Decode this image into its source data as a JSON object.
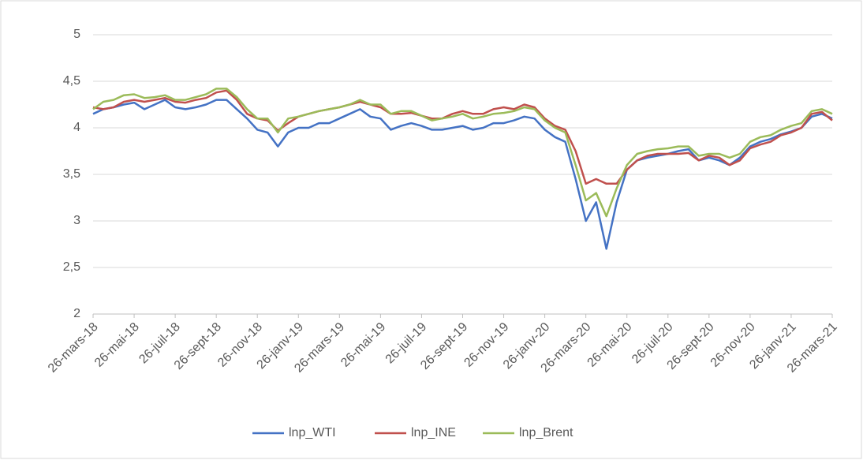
{
  "chart_data": {
    "type": "line",
    "categories": [
      "26-mars-18",
      null,
      null,
      null,
      "26-mai-18",
      null,
      null,
      null,
      "26-juil-18",
      null,
      null,
      null,
      "26-sept-18",
      null,
      null,
      null,
      "26-nov-18",
      null,
      null,
      null,
      "26-janv-19",
      null,
      null,
      null,
      "26-mars-19",
      null,
      null,
      null,
      "26-mai-19",
      null,
      null,
      null,
      "26-juil-19",
      null,
      null,
      null,
      "26-sept-19",
      null,
      null,
      null,
      "26-nov-19",
      null,
      null,
      null,
      "26-janv-20",
      null,
      null,
      null,
      "26-mars-20",
      null,
      null,
      null,
      "26-mai-20",
      null,
      null,
      null,
      "26-juil-20",
      null,
      null,
      null,
      "26-sept-20",
      null,
      null,
      null,
      "26-nov-20",
      null,
      null,
      null,
      "26-janv-21",
      null,
      null,
      null,
      "26-mars-21"
    ],
    "series": [
      {
        "name": "lnp_WTI",
        "color": "#4472c4",
        "values": [
          4.15,
          4.2,
          4.22,
          4.25,
          4.27,
          4.2,
          4.25,
          4.3,
          4.22,
          4.2,
          4.22,
          4.25,
          4.3,
          4.3,
          4.2,
          4.1,
          3.98,
          3.95,
          3.8,
          3.95,
          4.0,
          4.0,
          4.05,
          4.05,
          4.1,
          4.15,
          4.2,
          4.12,
          4.1,
          3.98,
          4.02,
          4.05,
          4.02,
          3.98,
          3.98,
          4.0,
          4.02,
          3.98,
          4.0,
          4.05,
          4.05,
          4.08,
          4.12,
          4.1,
          3.98,
          3.9,
          3.85,
          3.45,
          3.0,
          3.2,
          2.7,
          3.2,
          3.55,
          3.65,
          3.68,
          3.7,
          3.72,
          3.75,
          3.77,
          3.65,
          3.68,
          3.65,
          3.6,
          3.68,
          3.8,
          3.85,
          3.88,
          3.93,
          3.96,
          4.0,
          4.12,
          4.15,
          4.1
        ]
      },
      {
        "name": "lnp_INE",
        "color": "#c0504d",
        "values": [
          4.22,
          4.2,
          4.22,
          4.28,
          4.3,
          4.28,
          4.3,
          4.32,
          4.28,
          4.27,
          4.3,
          4.32,
          4.38,
          4.4,
          4.3,
          4.15,
          4.1,
          4.08,
          3.97,
          4.05,
          4.12,
          4.15,
          4.18,
          4.2,
          4.22,
          4.25,
          4.28,
          4.25,
          4.22,
          4.15,
          4.15,
          4.16,
          4.13,
          4.1,
          4.1,
          4.15,
          4.18,
          4.15,
          4.15,
          4.2,
          4.22,
          4.2,
          4.25,
          4.22,
          4.1,
          4.02,
          3.98,
          3.75,
          3.4,
          3.45,
          3.4,
          3.4,
          3.55,
          3.65,
          3.7,
          3.72,
          3.72,
          3.72,
          3.73,
          3.65,
          3.7,
          3.68,
          3.6,
          3.65,
          3.78,
          3.82,
          3.85,
          3.92,
          3.95,
          4.0,
          4.15,
          4.17,
          4.08
        ]
      },
      {
        "name": "lnp_Brent",
        "color": "#9bbb59",
        "values": [
          4.2,
          4.28,
          4.3,
          4.35,
          4.36,
          4.32,
          4.33,
          4.35,
          4.3,
          4.3,
          4.33,
          4.36,
          4.42,
          4.42,
          4.33,
          4.2,
          4.1,
          4.1,
          3.95,
          4.1,
          4.12,
          4.15,
          4.18,
          4.2,
          4.22,
          4.25,
          4.3,
          4.25,
          4.25,
          4.15,
          4.18,
          4.18,
          4.13,
          4.08,
          4.1,
          4.12,
          4.15,
          4.1,
          4.12,
          4.15,
          4.16,
          4.18,
          4.22,
          4.2,
          4.08,
          4.0,
          3.95,
          3.6,
          3.22,
          3.3,
          3.05,
          3.35,
          3.6,
          3.72,
          3.75,
          3.77,
          3.78,
          3.8,
          3.8,
          3.7,
          3.72,
          3.72,
          3.68,
          3.72,
          3.85,
          3.9,
          3.92,
          3.98,
          4.02,
          4.05,
          4.18,
          4.2,
          4.15
        ]
      }
    ],
    "ylim": [
      2,
      5
    ],
    "yticks": [
      2,
      {
        "value": 2.5,
        "label": "2,5"
      },
      3,
      {
        "value": 3.5,
        "label": "3,5"
      },
      4,
      {
        "value": 4.5,
        "label": "4,5"
      },
      5
    ],
    "grid": true,
    "legend": "bottom"
  }
}
